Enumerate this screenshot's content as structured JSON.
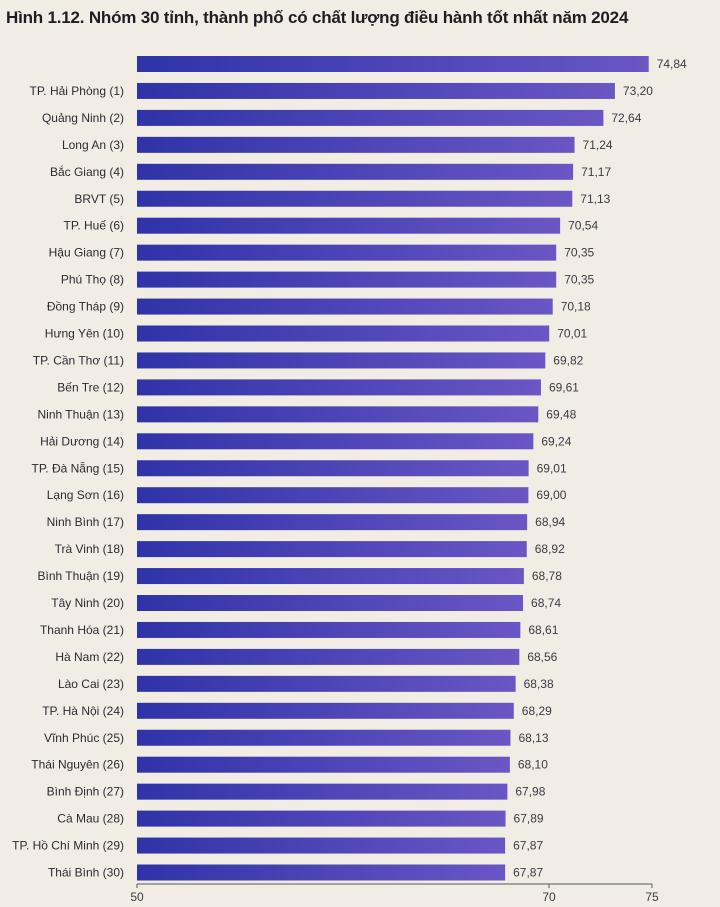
{
  "chart_data": {
    "type": "bar",
    "orientation": "horizontal",
    "title": "Hình 1.12. Nhóm 30 tỉnh, thành phố có chất lượng điều hành tốt nhất năm 2024",
    "categories": [
      "",
      "TP. Hải Phòng (1)",
      "Quảng Ninh (2)",
      "Long An (3)",
      "Bắc Giang (4)",
      "BRVT (5)",
      "TP. Huế (6)",
      "Hậu Giang (7)",
      "Phú Thọ (8)",
      "Đồng Tháp (9)",
      "Hưng Yên (10)",
      "TP. Cần Thơ (11)",
      "Bến Tre (12)",
      "Ninh Thuận (13)",
      "Hải Dương (14)",
      "TP. Đà Nẵng (15)",
      "Lạng Sơn (16)",
      "Ninh Bình (17)",
      "Trà Vinh (18)",
      "Bình Thuận (19)",
      "Tây Ninh (20)",
      "Thanh Hóa (21)",
      "Hà Nam (22)",
      "Lào Cai (23)",
      "TP. Hà Nội (24)",
      "Vĩnh Phúc (25)",
      "Thái Nguyên (26)",
      "Bình Định (27)",
      "Cà Mau (28)",
      "TP. Hồ Chí Minh (29)",
      "Thái Bình (30)"
    ],
    "values": [
      74.84,
      73.2,
      72.64,
      71.24,
      71.17,
      71.13,
      70.54,
      70.35,
      70.35,
      70.18,
      70.01,
      69.82,
      69.61,
      69.48,
      69.24,
      69.01,
      69.0,
      68.94,
      68.92,
      68.78,
      68.74,
      68.61,
      68.56,
      68.38,
      68.29,
      68.13,
      68.1,
      67.98,
      67.89,
      67.87,
      67.87
    ],
    "value_labels": [
      "74,84",
      "73,20",
      "72,64",
      "71,24",
      "71,17",
      "71,13",
      "70,54",
      "70,35",
      "70,35",
      "70,18",
      "70,01",
      "69,82",
      "69,61",
      "69,48",
      "69,24",
      "69,01",
      "69,00",
      "68,94",
      "68,92",
      "68,78",
      "68,74",
      "68,61",
      "68,56",
      "68,38",
      "68,29",
      "68,13",
      "68,10",
      "67,98",
      "67,89",
      "67,87",
      "67,87"
    ],
    "xlim": [
      50,
      75
    ],
    "xticks": [
      50,
      70,
      75
    ],
    "xtick_labels": [
      "50",
      "70",
      "75"
    ],
    "bar_color_start": "#2f33a8",
    "bar_color_end": "#6a56c4",
    "grid": false,
    "legend": "none"
  }
}
